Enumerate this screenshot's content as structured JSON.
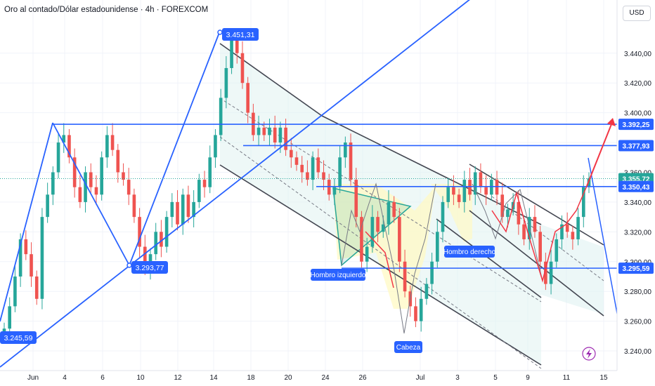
{
  "header": {
    "title": "Oro al contado/Dólar estadounidense · 4h · FOREXCOM",
    "currency": "USD"
  },
  "colors": {
    "up": "#26a69a",
    "down": "#ef5350",
    "accent": "#2962ff",
    "channel_fill": "#e0f2f1",
    "pattern_fill": "#fff9c4",
    "arrow_up": "#f23645",
    "lightning": "#9c27b0"
  },
  "icons": [
    "lightning-icon"
  ],
  "chart_data": {
    "type": "candlestick",
    "title": "Oro al contado/Dólar estadounidense",
    "timeframe": "4h",
    "source": "FOREXCOM",
    "x_ticks": [
      "Jun",
      "4",
      "6",
      "10",
      "12",
      "14",
      "18",
      "20",
      "24",
      "26",
      "Jul",
      "3",
      "5",
      "9",
      "11",
      "15"
    ],
    "y_ticks": [
      3240,
      3260,
      3280,
      3300,
      3320,
      3340,
      3360,
      3380,
      3400,
      3420,
      3440
    ],
    "y_tick_labels": [
      "3.240,00",
      "3.260,00",
      "3.280,00",
      "3.300,00",
      "3.320,00",
      "3.340,00",
      "3.360,00",
      "3.380,00",
      "3.400,00",
      "3.420,00",
      "3.440,00"
    ],
    "ylim": [
      3224,
      3471
    ],
    "price_levels": [
      {
        "label": "3.392,25",
        "value": 3392.25
      },
      {
        "label": "3.377,93",
        "value": 3377.93
      },
      {
        "label": "3.355,72",
        "value": 3355.72,
        "current": true
      },
      {
        "label": "3.350,43",
        "value": 3350.43
      },
      {
        "label": "3.295,59",
        "value": 3295.59
      }
    ],
    "point_labels": [
      {
        "text": "3.451,31",
        "value": 3451.31
      },
      {
        "text": "3.293,77",
        "value": 3293.77
      },
      {
        "text": "3.245,59",
        "value": 3245.59
      }
    ],
    "annotations": [
      "Hombro izquierdo",
      "Cabeza",
      "Hombro derecho"
    ],
    "pattern": "head and shoulders",
    "candles_approx": [
      3255,
      3270,
      3290,
      3315,
      3305,
      3290,
      3275,
      3330,
      3345,
      3360,
      3380,
      3385,
      3370,
      3350,
      3340,
      3360,
      3350,
      3345,
      3370,
      3385,
      3375,
      3360,
      3355,
      3345,
      3330,
      3310,
      3295,
      3305,
      3320,
      3310,
      3330,
      3340,
      3325,
      3345,
      3330,
      3340,
      3355,
      3350,
      3370,
      3385,
      3410,
      3430,
      3450,
      3440,
      3420,
      3400,
      3385,
      3390,
      3385,
      3390,
      3380,
      3390,
      3375,
      3370,
      3365,
      3360,
      3355,
      3370,
      3360,
      3355,
      3345,
      3350,
      3370,
      3380,
      3355,
      3330,
      3300,
      3310,
      3330,
      3320,
      3325,
      3340,
      3330,
      3300,
      3280,
      3270,
      3260,
      3275,
      3285,
      3300,
      3320,
      3340,
      3350,
      3345,
      3340,
      3355,
      3345,
      3360,
      3350,
      3345,
      3355,
      3345,
      3330,
      3335,
      3340,
      3325,
      3315,
      3330,
      3320,
      3300,
      3285,
      3300,
      3315,
      3325,
      3320,
      3315,
      3330,
      3350,
      3356
    ]
  }
}
